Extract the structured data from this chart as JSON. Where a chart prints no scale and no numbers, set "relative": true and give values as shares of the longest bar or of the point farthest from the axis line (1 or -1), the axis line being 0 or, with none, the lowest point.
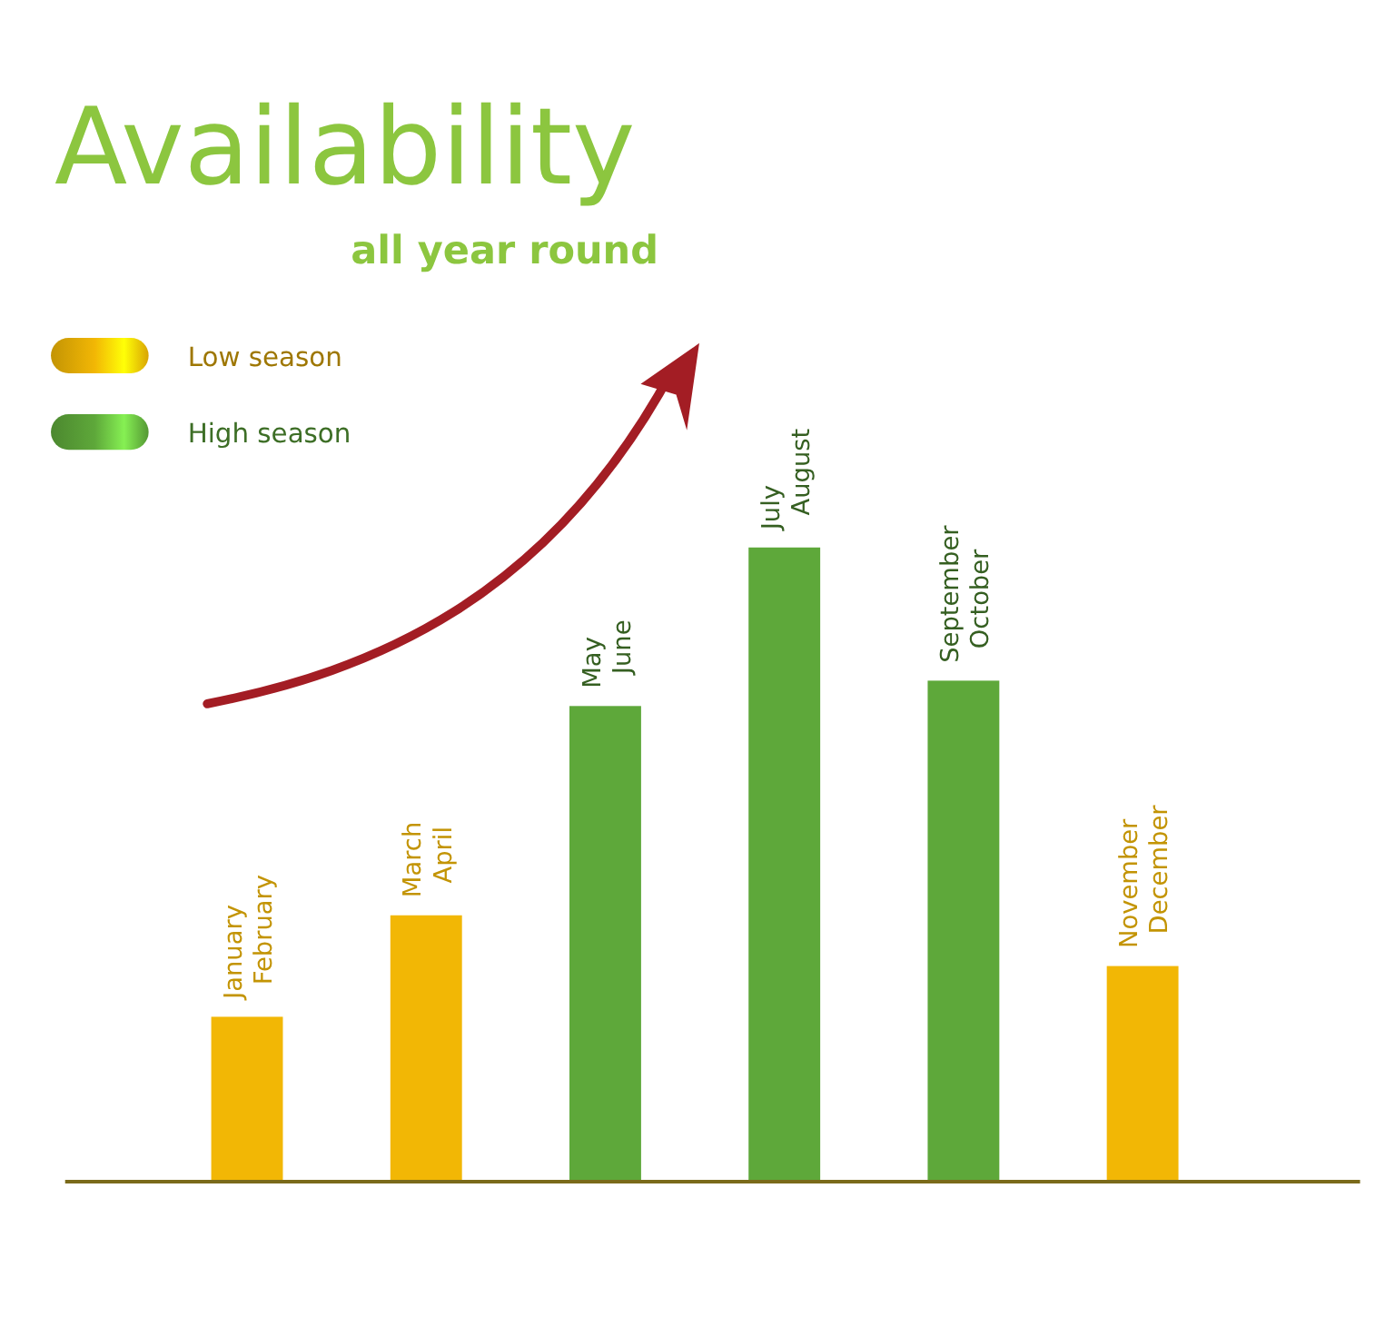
{
  "chart_data": {
    "type": "bar",
    "title": "Availability",
    "subtitle": "all year round",
    "relative": true,
    "categories": [
      "January\nFebruary",
      "March\nApril",
      "May\nJune",
      "July\nAugust",
      "September\nOctober",
      "November\nDecember"
    ],
    "series": [
      {
        "name": "Low season",
        "color": "#f2b705",
        "values": [
          0.26,
          0.42,
          null,
          null,
          null,
          0.34
        ]
      },
      {
        "name": "High season",
        "color": "#5ea83a",
        "values": [
          null,
          null,
          0.75,
          1,
          0.79,
          null
        ]
      }
    ],
    "stacked": true,
    "legend": "top left"
  }
}
